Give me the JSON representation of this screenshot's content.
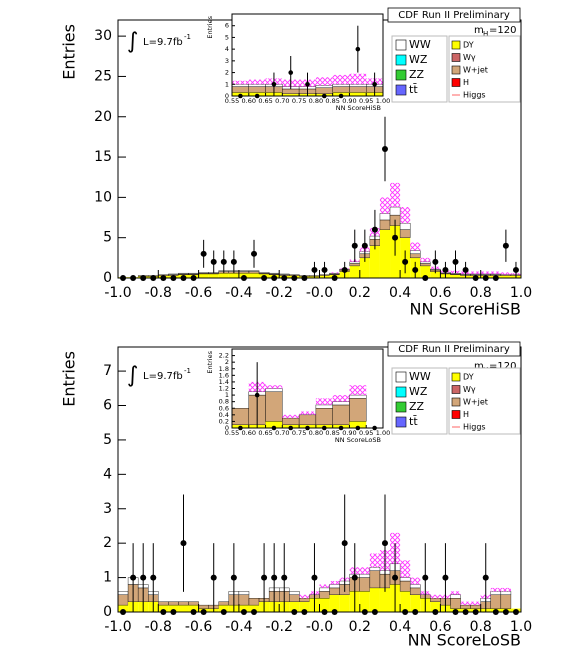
{
  "chart_data": [
    {
      "type": "stacked-histogram",
      "title": "CDF Run II Preliminary",
      "lumi_symbol": "∫",
      "lumi": "L=9.7fb",
      "lumi_exponent": "-1",
      "mass": {
        "symbol": "m",
        "subscript": "H",
        "value": "=120"
      },
      "x_label": "NN ScoreHiSB",
      "y_label": "Entries",
      "xlim": [
        -1,
        1
      ],
      "ylim": [
        0,
        32
      ],
      "xticks": [
        {
          "value": -1,
          "label": "-1.0"
        },
        -0.8,
        -0.6,
        -0.4,
        -0.2,
        {
          "value": 0,
          "label": "-0.0"
        },
        0.2,
        0.4,
        0.6,
        0.8,
        {
          "value": 1,
          "label": "1.0"
        }
      ],
      "yticks": [
        0,
        5,
        10,
        15,
        20,
        25,
        30
      ],
      "bins": [
        -1,
        -0.95,
        -0.9,
        -0.85,
        -0.8,
        -0.75,
        -0.7,
        -0.65,
        -0.6,
        -0.55,
        -0.5,
        -0.45,
        -0.4,
        -0.35,
        -0.3,
        -0.25,
        -0.2,
        -0.15,
        -0.1,
        -0.05,
        0,
        0.05,
        0.1,
        0.15,
        0.2,
        0.25,
        0.3,
        0.35,
        0.4,
        0.45,
        0.5,
        0.55,
        0.6,
        0.65,
        0.7,
        0.75,
        0.8,
        0.85,
        0.9,
        0.95,
        1
      ],
      "series": [
        {
          "name": "DY",
          "color": "#ffff00",
          "values": [
            0.1,
            0.1,
            0.2,
            0.2,
            0.3,
            0.3,
            0.4,
            0.4,
            0.5,
            0.5,
            0.6,
            0.6,
            0.6,
            0.6,
            0.5,
            0.4,
            0.3,
            0.3,
            0.2,
            0.2,
            0.3,
            0.4,
            0.8,
            1.5,
            2.5,
            4,
            6,
            6.5,
            5,
            2.5,
            1.5,
            0.8,
            0.5,
            0.4,
            0.3,
            0.3,
            0.3,
            0.3,
            0.3,
            0.3
          ]
        },
        {
          "name": "W+jet",
          "color": "#d2a679",
          "values": [
            0,
            0,
            0.1,
            0.1,
            0.1,
            0.1,
            0.1,
            0.1,
            0.1,
            0.1,
            0.2,
            0.2,
            0.2,
            0.2,
            0.1,
            0.1,
            0.1,
            0.1,
            0.1,
            0.1,
            0.1,
            0.1,
            0.2,
            0.3,
            0.5,
            0.8,
            1.2,
            1.3,
            1,
            0.5,
            0.3,
            0.2,
            0.1,
            0.1,
            0.1,
            0.1,
            0.1,
            0.1,
            0.1,
            0.1
          ]
        },
        {
          "name": "WW",
          "color": "#ffffff",
          "values": [
            0,
            0,
            0,
            0,
            0,
            0.1,
            0.1,
            0.1,
            0.1,
            0.1,
            0.1,
            0.1,
            0.1,
            0.1,
            0.1,
            0.1,
            0.1,
            0,
            0,
            0,
            0,
            0.1,
            0.1,
            0.2,
            0.3,
            0.4,
            0.8,
            1,
            0.8,
            0.4,
            0.2,
            0.1,
            0.1,
            0.1,
            0.1,
            0.1,
            0.1,
            0.1,
            0,
            0
          ]
        },
        {
          "name": "Higgs",
          "color": "#ff33ff",
          "style": "hatch",
          "values": [
            0,
            0,
            0,
            0,
            0,
            0,
            0,
            0,
            0,
            0,
            0,
            0,
            0,
            0,
            0,
            0,
            0,
            0,
            0,
            0,
            0,
            0.1,
            0.1,
            0.3,
            0.5,
            1,
            2,
            3,
            2,
            1,
            0.5,
            0.3,
            0.2,
            0.3,
            0.3,
            0.3,
            0.3,
            0.3,
            0.3,
            0.2
          ]
        }
      ],
      "legend_only": [
        {
          "name": "WZ",
          "color": "#00ffff"
        },
        {
          "name": "ZZ",
          "color": "#33cc33"
        },
        {
          "name": "tt̄",
          "color": "#6666ff"
        },
        {
          "name": "Wγ",
          "color": "#cc6666"
        },
        {
          "name": "H",
          "color": "#ff0000"
        }
      ],
      "data": [
        0,
        0,
        0,
        0,
        0,
        0,
        0,
        0,
        3,
        2,
        2,
        2,
        0,
        3,
        0,
        0,
        0,
        0,
        0,
        1,
        1,
        0,
        1,
        4,
        4,
        6,
        16,
        5,
        2,
        1,
        0,
        2,
        1,
        2,
        1,
        0,
        0,
        0,
        4,
        1
      ],
      "inset": {
        "x_label": "NN ScoreHiSB",
        "y_label": "Entries",
        "xlim": [
          0.55,
          1
        ],
        "ylim": [
          0,
          7
        ],
        "xticks": [
          0.55,
          {
            "value": 0.6,
            "label": "0.60"
          },
          0.65,
          {
            "value": 0.7,
            "label": "0.70"
          },
          0.75,
          {
            "value": 0.8,
            "label": "0.80"
          },
          0.85,
          {
            "value": 0.9,
            "label": "0.90"
          },
          0.95,
          {
            "value": 1,
            "label": "1.00"
          }
        ],
        "yticks": [
          0,
          1,
          2,
          3,
          4,
          5,
          6
        ],
        "bins": [
          0.55,
          0.6,
          0.65,
          0.7,
          0.75,
          0.8,
          0.85,
          0.9,
          0.95,
          1
        ],
        "series": [
          {
            "name": "DY",
            "color": "#ffff00",
            "values": [
              0.3,
              0.3,
              0.3,
              0.2,
              0.2,
              0.2,
              0.3,
              0.3,
              0.3
            ]
          },
          {
            "name": "W+jet",
            "color": "#d2a679",
            "values": [
              0.5,
              0.5,
              0.5,
              0.4,
              0.4,
              0.5,
              0.5,
              0.5,
              0.5
            ]
          },
          {
            "name": "WW",
            "color": "#ffffff",
            "values": [
              0.2,
              0.2,
              0.2,
              0.2,
              0.2,
              0.2,
              0.2,
              0.2,
              0.2
            ]
          },
          {
            "name": "Higgs",
            "color": "#ff33ff",
            "style": "hatch",
            "values": [
              0.3,
              0.4,
              0.5,
              0.6,
              0.6,
              0.7,
              0.8,
              0.9,
              0.5
            ]
          }
        ],
        "data": [
          0,
          0,
          1,
          2,
          1,
          0,
          0,
          4,
          1
        ]
      }
    },
    {
      "type": "stacked-histogram",
      "title": "CDF Run II Preliminary",
      "lumi_symbol": "∫",
      "lumi": "L=9.7fb",
      "lumi_exponent": "-1",
      "mass": {
        "symbol": "m",
        "subscript": "H",
        "value": "=120"
      },
      "x_label": "NN ScoreLoSB",
      "y_label": "Entries",
      "xlim": [
        -1,
        1
      ],
      "ylim": [
        0,
        7.7
      ],
      "xticks": [
        {
          "value": -1,
          "label": "-1.0"
        },
        -0.8,
        -0.6,
        -0.4,
        -0.2,
        {
          "value": 0,
          "label": "-0.0"
        },
        0.2,
        0.4,
        0.6,
        0.8,
        {
          "value": 1,
          "label": "1.0"
        }
      ],
      "yticks": [
        0,
        1,
        2,
        3,
        4,
        5,
        6,
        7
      ],
      "bins": [
        -1,
        -0.95,
        -0.9,
        -0.85,
        -0.8,
        -0.75,
        -0.7,
        -0.65,
        -0.6,
        -0.55,
        -0.5,
        -0.45,
        -0.4,
        -0.35,
        -0.3,
        -0.25,
        -0.2,
        -0.15,
        -0.1,
        -0.05,
        0,
        0.05,
        0.1,
        0.15,
        0.2,
        0.25,
        0.3,
        0.35,
        0.4,
        0.45,
        0.5,
        0.55,
        0.6,
        0.65,
        0.7,
        0.75,
        0.8,
        0.85,
        0.9,
        0.95,
        1
      ],
      "series": [
        {
          "name": "DY",
          "color": "#ffff00",
          "values": [
            0.2,
            0.3,
            0.3,
            0.3,
            0.2,
            0.2,
            0.2,
            0.2,
            0.1,
            0.1,
            0.2,
            0.2,
            0.2,
            0.2,
            0.3,
            0.3,
            0.3,
            0.3,
            0.3,
            0.4,
            0.4,
            0.5,
            0.5,
            0.6,
            0.6,
            0.7,
            0.7,
            0.8,
            0.6,
            0.5,
            0.4,
            0.3,
            0.2,
            0.1,
            0.1,
            0.1,
            0.1,
            0.1,
            0.1,
            0.1
          ]
        },
        {
          "name": "W+jet",
          "color": "#d2a679",
          "values": [
            0.3,
            0.5,
            0.4,
            0.2,
            0.1,
            0.1,
            0.1,
            0.1,
            0.1,
            0.1,
            0.1,
            0.3,
            0.3,
            0.2,
            0.1,
            0.3,
            0.3,
            0.2,
            0.1,
            0.1,
            0.2,
            0.2,
            0.3,
            0.4,
            0.4,
            0.5,
            0.4,
            0.4,
            0.3,
            0.2,
            0.1,
            0.1,
            0.2,
            0.3,
            0.1,
            0.1,
            0.2,
            0.4,
            0.4,
            0
          ]
        },
        {
          "name": "WW",
          "color": "#ffffff",
          "values": [
            0.1,
            0.2,
            0.1,
            0.1,
            0,
            0,
            0,
            0,
            0,
            0,
            0,
            0.1,
            0.1,
            0,
            0,
            0.1,
            0.1,
            0.1,
            0,
            0,
            0.1,
            0.1,
            0.1,
            0.1,
            0.1,
            0.1,
            0.1,
            0.2,
            0.1,
            0.1,
            0,
            0,
            0,
            0.1,
            0,
            0,
            0.1,
            0.1,
            0.1,
            0
          ]
        },
        {
          "name": "Higgs",
          "color": "#ff33ff",
          "style": "hatch",
          "values": [
            0,
            0,
            0,
            0,
            0,
            0,
            0,
            0,
            0,
            0,
            0,
            0,
            0,
            0,
            0,
            0,
            0,
            0,
            0.1,
            0.1,
            0.1,
            0.1,
            0.1,
            0.2,
            0.2,
            0.4,
            0.6,
            0.9,
            0.5,
            0.2,
            0.1,
            0.1,
            0.1,
            0.1,
            0.1,
            0.1,
            0.1,
            0.1,
            0.1,
            0
          ]
        }
      ],
      "legend_only": [
        {
          "name": "WZ",
          "color": "#00ffff"
        },
        {
          "name": "ZZ",
          "color": "#33cc33"
        },
        {
          "name": "tt̄",
          "color": "#6666ff"
        },
        {
          "name": "Wγ",
          "color": "#cc6666"
        },
        {
          "name": "H",
          "color": "#ff0000"
        }
      ],
      "data": [
        0,
        1,
        1,
        1,
        0,
        0,
        2,
        0,
        0,
        1,
        0,
        1,
        0,
        0,
        1,
        1,
        1,
        0,
        0,
        1,
        0,
        0,
        2,
        1,
        0,
        0,
        2,
        1,
        0,
        0,
        1,
        0,
        1,
        0,
        0,
        0,
        1,
        0,
        0,
        0
      ],
      "inset": {
        "x_label": "NN ScoreLoSB",
        "y_label": "Entries",
        "xlim": [
          0.55,
          1
        ],
        "ylim": [
          0,
          2.4
        ],
        "xticks": [
          0.55,
          {
            "value": 0.6,
            "label": "0.60"
          },
          0.65,
          {
            "value": 0.7,
            "label": "0.70"
          },
          0.75,
          {
            "value": 0.8,
            "label": "0.80"
          },
          0.85,
          {
            "value": 0.9,
            "label": "0.90"
          },
          0.95,
          {
            "value": 1,
            "label": "1.00"
          }
        ],
        "yticks": [
          0,
          0.2,
          0.4,
          0.6,
          0.8,
          1,
          1.2,
          1.4,
          1.6,
          1.8,
          2,
          2.2
        ],
        "bins": [
          0.55,
          0.6,
          0.65,
          0.7,
          0.75,
          0.8,
          0.85,
          0.9,
          0.95,
          1
        ],
        "series": [
          {
            "name": "DY",
            "color": "#ffff00",
            "values": [
              0.1,
              0.1,
              0.2,
              0.1,
              0.1,
              0.1,
              0.1,
              0.2,
              0
            ]
          },
          {
            "name": "W+jet",
            "color": "#d2a679",
            "values": [
              0.5,
              0.9,
              0.9,
              0.2,
              0.3,
              0.5,
              0.6,
              0.7,
              0
            ]
          },
          {
            "name": "WW",
            "color": "#ffffff",
            "values": [
              0,
              0.1,
              0.1,
              0,
              0,
              0.1,
              0.1,
              0.1,
              0
            ]
          },
          {
            "name": "Higgs",
            "color": "#ff33ff",
            "style": "hatch",
            "values": [
              0,
              0.3,
              0.1,
              0.1,
              0.1,
              0.2,
              0.2,
              0.3,
              0
            ]
          }
        ],
        "data": [
          0,
          1,
          0,
          0,
          0,
          0,
          0,
          0,
          0
        ]
      }
    }
  ]
}
